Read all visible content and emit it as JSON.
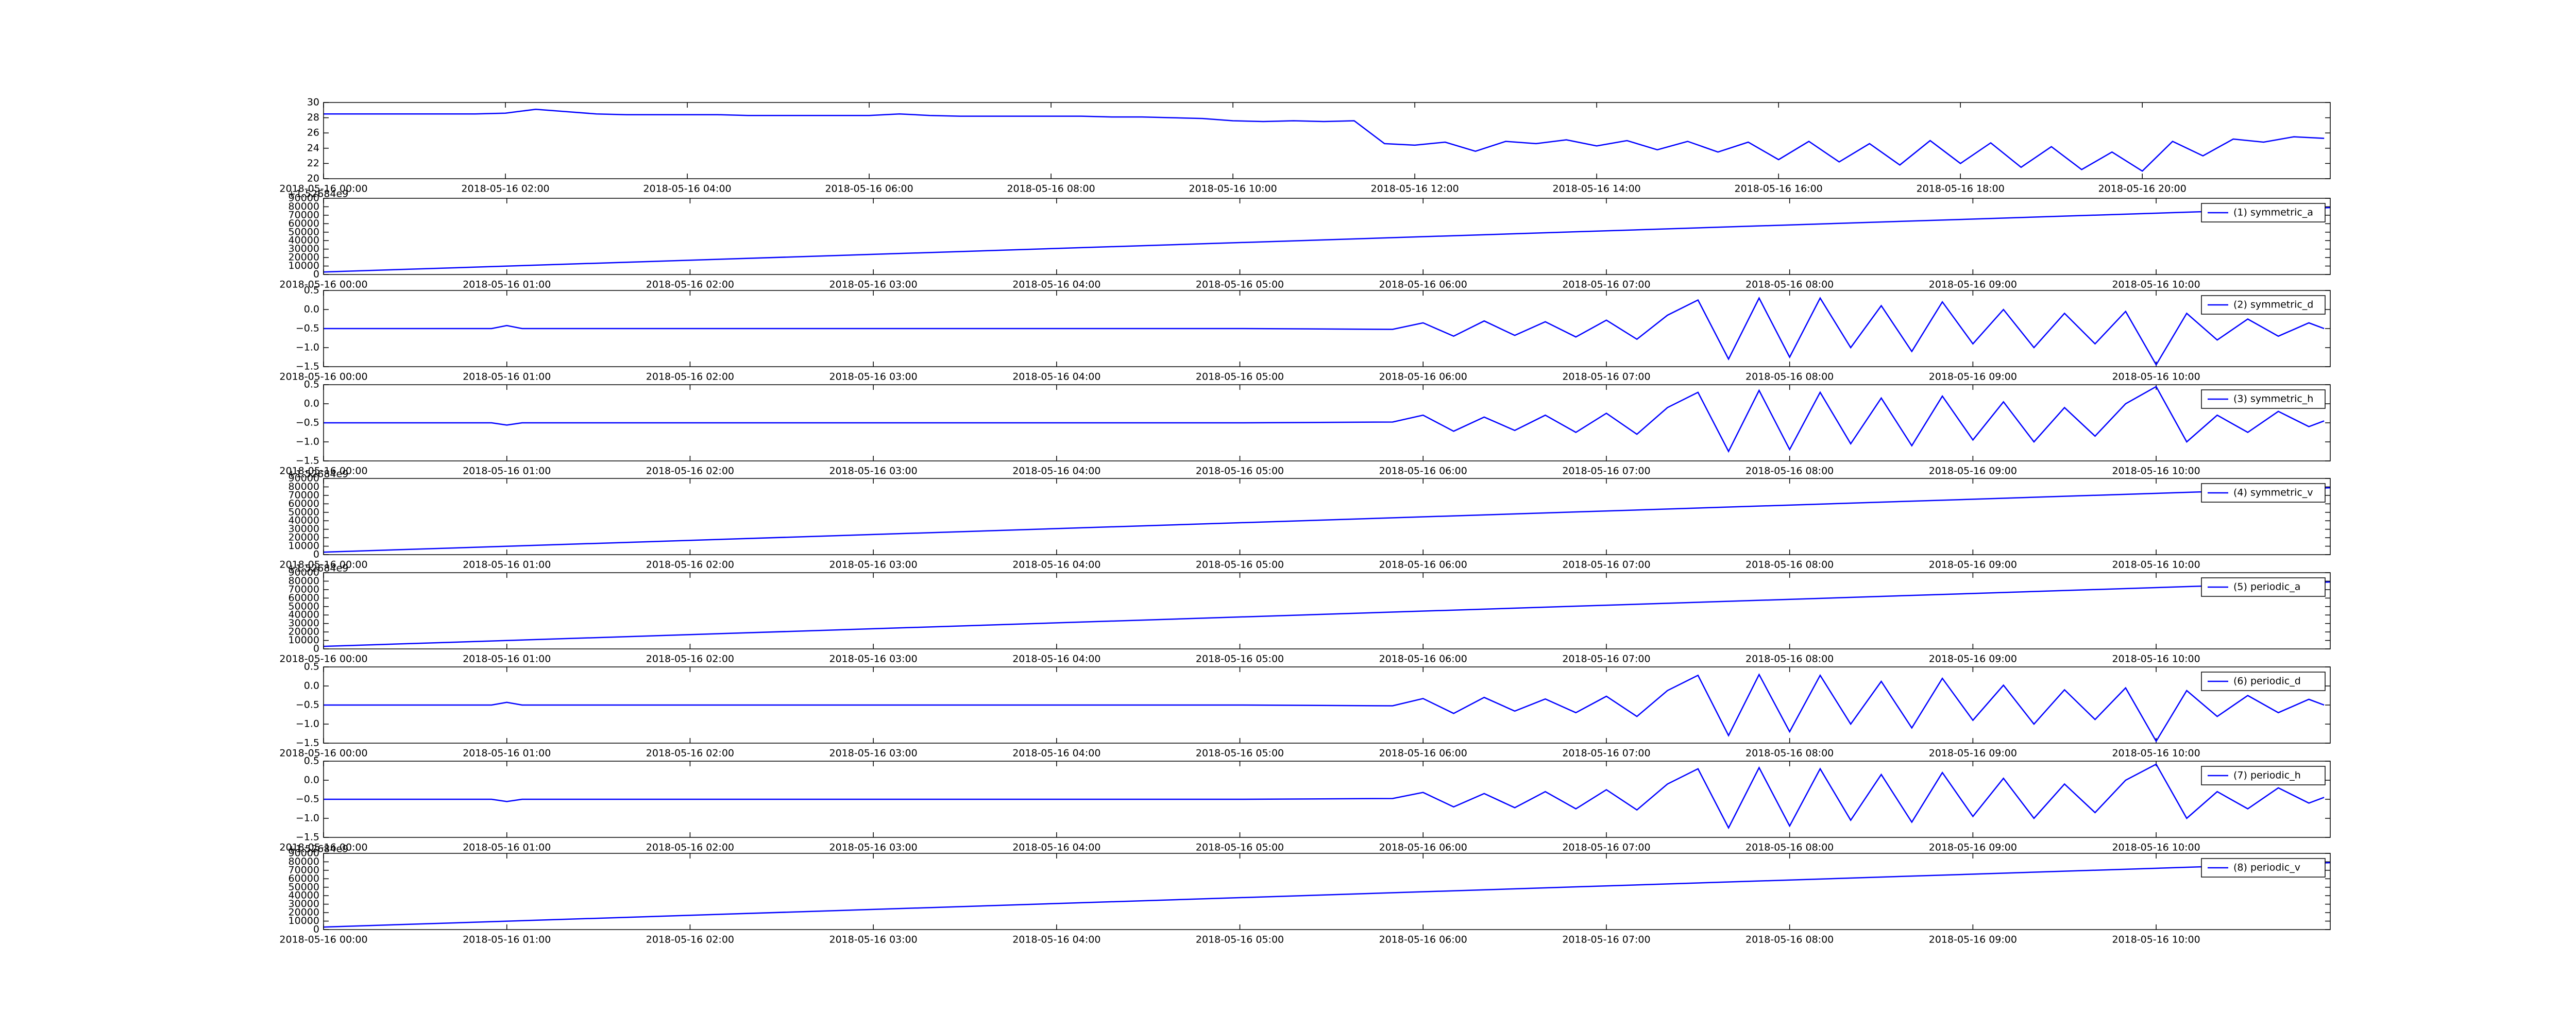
{
  "chart_data": [
    {
      "type": "line",
      "color": "#0000ff",
      "xlim": [
        "2018-05-16 00:00",
        "2018-05-16 22:04"
      ],
      "ylim": [
        20,
        30
      ],
      "xticks": [
        "2018-05-16 00:00",
        "2018-05-16 02:00",
        "2018-05-16 04:00",
        "2018-05-16 06:00",
        "2018-05-16 08:00",
        "2018-05-16 10:00",
        "2018-05-16 12:00",
        "2018-05-16 14:00",
        "2018-05-16 16:00",
        "2018-05-16 18:00",
        "2018-05-16 20:00"
      ],
      "yticks": [
        20,
        22,
        24,
        26,
        28,
        30
      ],
      "x": [
        "2018-05-16 00:00",
        "2018-05-16 00:20",
        "2018-05-16 00:40",
        "2018-05-16 01:00",
        "2018-05-16 01:20",
        "2018-05-16 01:40",
        "2018-05-16 02:00",
        "2018-05-16 02:20",
        "2018-05-16 02:40",
        "2018-05-16 03:00",
        "2018-05-16 03:20",
        "2018-05-16 03:40",
        "2018-05-16 04:00",
        "2018-05-16 04:20",
        "2018-05-16 04:40",
        "2018-05-16 05:00",
        "2018-05-16 05:20",
        "2018-05-16 05:40",
        "2018-05-16 06:00",
        "2018-05-16 06:20",
        "2018-05-16 06:40",
        "2018-05-16 07:00",
        "2018-05-16 07:20",
        "2018-05-16 07:40",
        "2018-05-16 08:00",
        "2018-05-16 08:20",
        "2018-05-16 08:40",
        "2018-05-16 09:00",
        "2018-05-16 09:20",
        "2018-05-16 09:40",
        "2018-05-16 10:00",
        "2018-05-16 10:20",
        "2018-05-16 10:40",
        "2018-05-16 11:00",
        "2018-05-16 11:20",
        "2018-05-16 11:40",
        "2018-05-16 12:00",
        "2018-05-16 12:20",
        "2018-05-16 12:40",
        "2018-05-16 13:00",
        "2018-05-16 13:20",
        "2018-05-16 13:40",
        "2018-05-16 14:00",
        "2018-05-16 14:20",
        "2018-05-16 14:40",
        "2018-05-16 15:00",
        "2018-05-16 15:20",
        "2018-05-16 15:40",
        "2018-05-16 16:00",
        "2018-05-16 16:20",
        "2018-05-16 16:40",
        "2018-05-16 17:00",
        "2018-05-16 17:20",
        "2018-05-16 17:40",
        "2018-05-16 18:00",
        "2018-05-16 18:20",
        "2018-05-16 18:40",
        "2018-05-16 19:00",
        "2018-05-16 19:20",
        "2018-05-16 19:40",
        "2018-05-16 20:00",
        "2018-05-16 20:20",
        "2018-05-16 20:40",
        "2018-05-16 21:00",
        "2018-05-16 21:20",
        "2018-05-16 21:40",
        "2018-05-16 22:00"
      ],
      "values": [
        28.5,
        28.5,
        28.5,
        28.5,
        28.5,
        28.5,
        28.6,
        29.1,
        28.8,
        28.5,
        28.4,
        28.4,
        28.4,
        28.4,
        28.3,
        28.3,
        28.3,
        28.3,
        28.3,
        28.5,
        28.3,
        28.2,
        28.2,
        28.2,
        28.2,
        28.2,
        28.1,
        28.1,
        28.0,
        27.9,
        27.6,
        27.5,
        27.6,
        27.5,
        27.6,
        24.6,
        24.4,
        24.8,
        23.6,
        24.9,
        24.6,
        25.1,
        24.3,
        25.0,
        23.8,
        24.9,
        23.5,
        24.8,
        22.5,
        24.9,
        22.2,
        24.6,
        21.8,
        25.0,
        22.0,
        24.7,
        21.5,
        24.2,
        21.2,
        23.5,
        21.0,
        24.9,
        23.0,
        25.2,
        24.8,
        25.5,
        25.3
      ]
    },
    {
      "type": "line",
      "legend": "upper right",
      "offset_text": "+1.52684e9",
      "xlim": [
        "2018-05-16 00:00",
        "2018-05-16 10:57"
      ],
      "ylim": [
        0,
        90000
      ],
      "xticks": [
        "2018-05-16 00:00",
        "2018-05-16 01:00",
        "2018-05-16 02:00",
        "2018-05-16 03:00",
        "2018-05-16 04:00",
        "2018-05-16 05:00",
        "2018-05-16 06:00",
        "2018-05-16 07:00",
        "2018-05-16 08:00",
        "2018-05-16 09:00",
        "2018-05-16 10:00"
      ],
      "yticks": [
        0,
        10000,
        20000,
        30000,
        40000,
        50000,
        60000,
        70000,
        80000,
        90000
      ],
      "x": [
        "2018-05-16 00:00",
        "2018-05-16 10:57"
      ],
      "series": [
        {
          "name": "(1) symmetric_a",
          "color": "#0000ff",
          "values": [
            3000,
            79000
          ]
        }
      ]
    },
    {
      "type": "line",
      "legend": "upper right",
      "xlim": [
        "2018-05-16 00:00",
        "2018-05-16 10:57"
      ],
      "ylim": [
        -1.5,
        0.5
      ],
      "xticks": [
        "2018-05-16 00:00",
        "2018-05-16 01:00",
        "2018-05-16 02:00",
        "2018-05-16 03:00",
        "2018-05-16 04:00",
        "2018-05-16 05:00",
        "2018-05-16 06:00",
        "2018-05-16 07:00",
        "2018-05-16 08:00",
        "2018-05-16 09:00",
        "2018-05-16 10:00"
      ],
      "yticks": [
        {
          "value": -1.5,
          "label": "−1.5"
        },
        {
          "value": -1.0,
          "label": "−1.0"
        },
        {
          "value": -0.5,
          "label": "−0.5"
        },
        {
          "value": 0,
          "label": "0.0"
        },
        0.5
      ],
      "x": [
        "2018-05-16 00:00",
        "2018-05-16 00:55",
        "2018-05-16 01:00",
        "2018-05-16 01:05",
        "2018-05-16 02:00",
        "2018-05-16 03:00",
        "2018-05-16 04:00",
        "2018-05-16 05:00",
        "2018-05-16 05:50",
        "2018-05-16 06:00",
        "2018-05-16 06:10",
        "2018-05-16 06:20",
        "2018-05-16 06:30",
        "2018-05-16 06:40",
        "2018-05-16 06:50",
        "2018-05-16 07:00",
        "2018-05-16 07:10",
        "2018-05-16 07:20",
        "2018-05-16 07:30",
        "2018-05-16 07:40",
        "2018-05-16 07:50",
        "2018-05-16 08:00",
        "2018-05-16 08:10",
        "2018-05-16 08:20",
        "2018-05-16 08:30",
        "2018-05-16 08:40",
        "2018-05-16 08:50",
        "2018-05-16 09:00",
        "2018-05-16 09:10",
        "2018-05-16 09:20",
        "2018-05-16 09:30",
        "2018-05-16 09:40",
        "2018-05-16 09:50",
        "2018-05-16 10:00",
        "2018-05-16 10:10",
        "2018-05-16 10:20",
        "2018-05-16 10:30",
        "2018-05-16 10:40",
        "2018-05-16 10:50",
        "2018-05-16 10:55"
      ],
      "series": [
        {
          "name": "(2) symmetric_d",
          "color": "#0000ff",
          "values": [
            -0.5,
            -0.5,
            -0.42,
            -0.5,
            -0.5,
            -0.5,
            -0.5,
            -0.5,
            -0.52,
            -0.35,
            -0.7,
            -0.3,
            -0.68,
            -0.32,
            -0.72,
            -0.28,
            -0.78,
            -0.15,
            0.25,
            -1.3,
            0.3,
            -1.25,
            0.3,
            -1.0,
            0.1,
            -1.1,
            0.2,
            -0.9,
            0.0,
            -1.0,
            -0.1,
            -0.9,
            -0.05,
            -1.45,
            -0.1,
            -0.8,
            -0.25,
            -0.7,
            -0.35,
            -0.5
          ]
        }
      ]
    },
    {
      "type": "line",
      "legend": "upper right",
      "xlim": [
        "2018-05-16 00:00",
        "2018-05-16 10:57"
      ],
      "ylim": [
        -1.5,
        0.5
      ],
      "xticks": [
        "2018-05-16 00:00",
        "2018-05-16 01:00",
        "2018-05-16 02:00",
        "2018-05-16 03:00",
        "2018-05-16 04:00",
        "2018-05-16 05:00",
        "2018-05-16 06:00",
        "2018-05-16 07:00",
        "2018-05-16 08:00",
        "2018-05-16 09:00",
        "2018-05-16 10:00"
      ],
      "yticks": [
        {
          "value": -1.5,
          "label": "−1.5"
        },
        {
          "value": -1.0,
          "label": "−1.0"
        },
        {
          "value": -0.5,
          "label": "−0.5"
        },
        {
          "value": 0,
          "label": "0.0"
        },
        0.5
      ],
      "x": [
        "2018-05-16 00:00",
        "2018-05-16 00:55",
        "2018-05-16 01:00",
        "2018-05-16 01:05",
        "2018-05-16 02:00",
        "2018-05-16 03:00",
        "2018-05-16 04:00",
        "2018-05-16 05:00",
        "2018-05-16 05:50",
        "2018-05-16 06:00",
        "2018-05-16 06:10",
        "2018-05-16 06:20",
        "2018-05-16 06:30",
        "2018-05-16 06:40",
        "2018-05-16 06:50",
        "2018-05-16 07:00",
        "2018-05-16 07:10",
        "2018-05-16 07:20",
        "2018-05-16 07:30",
        "2018-05-16 07:40",
        "2018-05-16 07:50",
        "2018-05-16 08:00",
        "2018-05-16 08:10",
        "2018-05-16 08:20",
        "2018-05-16 08:30",
        "2018-05-16 08:40",
        "2018-05-16 08:50",
        "2018-05-16 09:00",
        "2018-05-16 09:10",
        "2018-05-16 09:20",
        "2018-05-16 09:30",
        "2018-05-16 09:40",
        "2018-05-16 09:50",
        "2018-05-16 10:00",
        "2018-05-16 10:10",
        "2018-05-16 10:20",
        "2018-05-16 10:30",
        "2018-05-16 10:40",
        "2018-05-16 10:50",
        "2018-05-16 10:55"
      ],
      "series": [
        {
          "name": "(3) symmetric_h",
          "color": "#0000ff",
          "values": [
            -0.5,
            -0.5,
            -0.56,
            -0.5,
            -0.5,
            -0.5,
            -0.5,
            -0.5,
            -0.48,
            -0.3,
            -0.72,
            -0.35,
            -0.7,
            -0.3,
            -0.75,
            -0.25,
            -0.8,
            -0.1,
            0.3,
            -1.25,
            0.35,
            -1.2,
            0.3,
            -1.05,
            0.15,
            -1.1,
            0.2,
            -0.95,
            0.05,
            -1.0,
            -0.1,
            -0.85,
            0.0,
            0.45,
            -1.0,
            -0.3,
            -0.75,
            -0.2,
            -0.6,
            -0.45
          ]
        }
      ]
    },
    {
      "type": "line",
      "legend": "upper right",
      "offset_text": "+1.52684e9",
      "xlim": [
        "2018-05-16 00:00",
        "2018-05-16 10:57"
      ],
      "ylim": [
        0,
        90000
      ],
      "xticks": [
        "2018-05-16 00:00",
        "2018-05-16 01:00",
        "2018-05-16 02:00",
        "2018-05-16 03:00",
        "2018-05-16 04:00",
        "2018-05-16 05:00",
        "2018-05-16 06:00",
        "2018-05-16 07:00",
        "2018-05-16 08:00",
        "2018-05-16 09:00",
        "2018-05-16 10:00"
      ],
      "yticks": [
        0,
        10000,
        20000,
        30000,
        40000,
        50000,
        60000,
        70000,
        80000,
        90000
      ],
      "x": [
        "2018-05-16 00:00",
        "2018-05-16 10:57"
      ],
      "series": [
        {
          "name": "(4) symmetric_v",
          "color": "#0000ff",
          "values": [
            3000,
            79000
          ]
        }
      ]
    },
    {
      "type": "line",
      "legend": "upper right",
      "offset_text": "+1.52684e9",
      "xlim": [
        "2018-05-16 00:00",
        "2018-05-16 10:57"
      ],
      "ylim": [
        0,
        90000
      ],
      "xticks": [
        "2018-05-16 00:00",
        "2018-05-16 01:00",
        "2018-05-16 02:00",
        "2018-05-16 03:00",
        "2018-05-16 04:00",
        "2018-05-16 05:00",
        "2018-05-16 06:00",
        "2018-05-16 07:00",
        "2018-05-16 08:00",
        "2018-05-16 09:00",
        "2018-05-16 10:00"
      ],
      "yticks": [
        0,
        10000,
        20000,
        30000,
        40000,
        50000,
        60000,
        70000,
        80000,
        90000
      ],
      "x": [
        "2018-05-16 00:00",
        "2018-05-16 10:57"
      ],
      "series": [
        {
          "name": "(5) periodic_a",
          "color": "#0000ff",
          "values": [
            3000,
            79000
          ]
        }
      ]
    },
    {
      "type": "line",
      "legend": "upper right",
      "xlim": [
        "2018-05-16 00:00",
        "2018-05-16 10:57"
      ],
      "ylim": [
        -1.5,
        0.5
      ],
      "xticks": [
        "2018-05-16 00:00",
        "2018-05-16 01:00",
        "2018-05-16 02:00",
        "2018-05-16 03:00",
        "2018-05-16 04:00",
        "2018-05-16 05:00",
        "2018-05-16 06:00",
        "2018-05-16 07:00",
        "2018-05-16 08:00",
        "2018-05-16 09:00",
        "2018-05-16 10:00"
      ],
      "yticks": [
        {
          "value": -1.5,
          "label": "−1.5"
        },
        {
          "value": -1.0,
          "label": "−1.0"
        },
        {
          "value": -0.5,
          "label": "−0.5"
        },
        {
          "value": 0,
          "label": "0.0"
        },
        0.5
      ],
      "x": [
        "2018-05-16 00:00",
        "2018-05-16 00:55",
        "2018-05-16 01:00",
        "2018-05-16 01:05",
        "2018-05-16 02:00",
        "2018-05-16 03:00",
        "2018-05-16 04:00",
        "2018-05-16 05:00",
        "2018-05-16 05:50",
        "2018-05-16 06:00",
        "2018-05-16 06:10",
        "2018-05-16 06:20",
        "2018-05-16 06:30",
        "2018-05-16 06:40",
        "2018-05-16 06:50",
        "2018-05-16 07:00",
        "2018-05-16 07:10",
        "2018-05-16 07:20",
        "2018-05-16 07:30",
        "2018-05-16 07:40",
        "2018-05-16 07:50",
        "2018-05-16 08:00",
        "2018-05-16 08:10",
        "2018-05-16 08:20",
        "2018-05-16 08:30",
        "2018-05-16 08:40",
        "2018-05-16 08:50",
        "2018-05-16 09:00",
        "2018-05-16 09:10",
        "2018-05-16 09:20",
        "2018-05-16 09:30",
        "2018-05-16 09:40",
        "2018-05-16 09:50",
        "2018-05-16 10:00",
        "2018-05-16 10:10",
        "2018-05-16 10:20",
        "2018-05-16 10:30",
        "2018-05-16 10:40",
        "2018-05-16 10:50",
        "2018-05-16 10:55"
      ],
      "series": [
        {
          "name": "(6) periodic_d",
          "color": "#0000ff",
          "values": [
            -0.5,
            -0.5,
            -0.43,
            -0.5,
            -0.5,
            -0.5,
            -0.5,
            -0.5,
            -0.52,
            -0.33,
            -0.72,
            -0.3,
            -0.66,
            -0.34,
            -0.7,
            -0.27,
            -0.8,
            -0.12,
            0.28,
            -1.3,
            0.3,
            -1.2,
            0.28,
            -1.0,
            0.12,
            -1.1,
            0.2,
            -0.9,
            0.02,
            -1.0,
            -0.1,
            -0.88,
            -0.05,
            -1.45,
            -0.12,
            -0.8,
            -0.25,
            -0.7,
            -0.35,
            -0.5
          ]
        }
      ]
    },
    {
      "type": "line",
      "legend": "upper right",
      "xlim": [
        "2018-05-16 00:00",
        "2018-05-16 10:57"
      ],
      "ylim": [
        -1.5,
        0.5
      ],
      "xticks": [
        "2018-05-16 00:00",
        "2018-05-16 01:00",
        "2018-05-16 02:00",
        "2018-05-16 03:00",
        "2018-05-16 04:00",
        "2018-05-16 05:00",
        "2018-05-16 06:00",
        "2018-05-16 07:00",
        "2018-05-16 08:00",
        "2018-05-16 09:00",
        "2018-05-16 10:00"
      ],
      "yticks": [
        {
          "value": -1.5,
          "label": "−1.5"
        },
        {
          "value": -1.0,
          "label": "−1.0"
        },
        {
          "value": -0.5,
          "label": "−0.5"
        },
        {
          "value": 0,
          "label": "0.0"
        },
        0.5
      ],
      "x": [
        "2018-05-16 00:00",
        "2018-05-16 00:55",
        "2018-05-16 01:00",
        "2018-05-16 01:05",
        "2018-05-16 02:00",
        "2018-05-16 03:00",
        "2018-05-16 04:00",
        "2018-05-16 05:00",
        "2018-05-16 05:50",
        "2018-05-16 06:00",
        "2018-05-16 06:10",
        "2018-05-16 06:20",
        "2018-05-16 06:30",
        "2018-05-16 06:40",
        "2018-05-16 06:50",
        "2018-05-16 07:00",
        "2018-05-16 07:10",
        "2018-05-16 07:20",
        "2018-05-16 07:30",
        "2018-05-16 07:40",
        "2018-05-16 07:50",
        "2018-05-16 08:00",
        "2018-05-16 08:10",
        "2018-05-16 08:20",
        "2018-05-16 08:30",
        "2018-05-16 08:40",
        "2018-05-16 08:50",
        "2018-05-16 09:00",
        "2018-05-16 09:10",
        "2018-05-16 09:20",
        "2018-05-16 09:30",
        "2018-05-16 09:40",
        "2018-05-16 09:50",
        "2018-05-16 10:00",
        "2018-05-16 10:10",
        "2018-05-16 10:20",
        "2018-05-16 10:30",
        "2018-05-16 10:40",
        "2018-05-16 10:50",
        "2018-05-16 10:55"
      ],
      "series": [
        {
          "name": "(7) periodic_h",
          "color": "#0000ff",
          "values": [
            -0.5,
            -0.5,
            -0.56,
            -0.5,
            -0.5,
            -0.5,
            -0.5,
            -0.5,
            -0.48,
            -0.32,
            -0.7,
            -0.35,
            -0.72,
            -0.3,
            -0.75,
            -0.25,
            -0.78,
            -0.1,
            0.3,
            -1.25,
            0.33,
            -1.2,
            0.3,
            -1.05,
            0.15,
            -1.1,
            0.2,
            -0.95,
            0.05,
            -1.0,
            -0.1,
            -0.85,
            0.0,
            0.42,
            -1.0,
            -0.3,
            -0.75,
            -0.2,
            -0.6,
            -0.45
          ]
        }
      ]
    },
    {
      "type": "line",
      "legend": "upper right",
      "offset_text": "+1.52684e9",
      "xlim": [
        "2018-05-16 00:00",
        "2018-05-16 10:57"
      ],
      "ylim": [
        0,
        90000
      ],
      "xticks": [
        "2018-05-16 00:00",
        "2018-05-16 01:00",
        "2018-05-16 02:00",
        "2018-05-16 03:00",
        "2018-05-16 04:00",
        "2018-05-16 05:00",
        "2018-05-16 06:00",
        "2018-05-16 07:00",
        "2018-05-16 08:00",
        "2018-05-16 09:00",
        "2018-05-16 10:00"
      ],
      "yticks": [
        0,
        10000,
        20000,
        30000,
        40000,
        50000,
        60000,
        70000,
        80000,
        90000
      ],
      "x": [
        "2018-05-16 00:00",
        "2018-05-16 10:57"
      ],
      "series": [
        {
          "name": "(8) periodic_v",
          "color": "#0000ff",
          "values": [
            3000,
            79000
          ]
        }
      ]
    }
  ]
}
